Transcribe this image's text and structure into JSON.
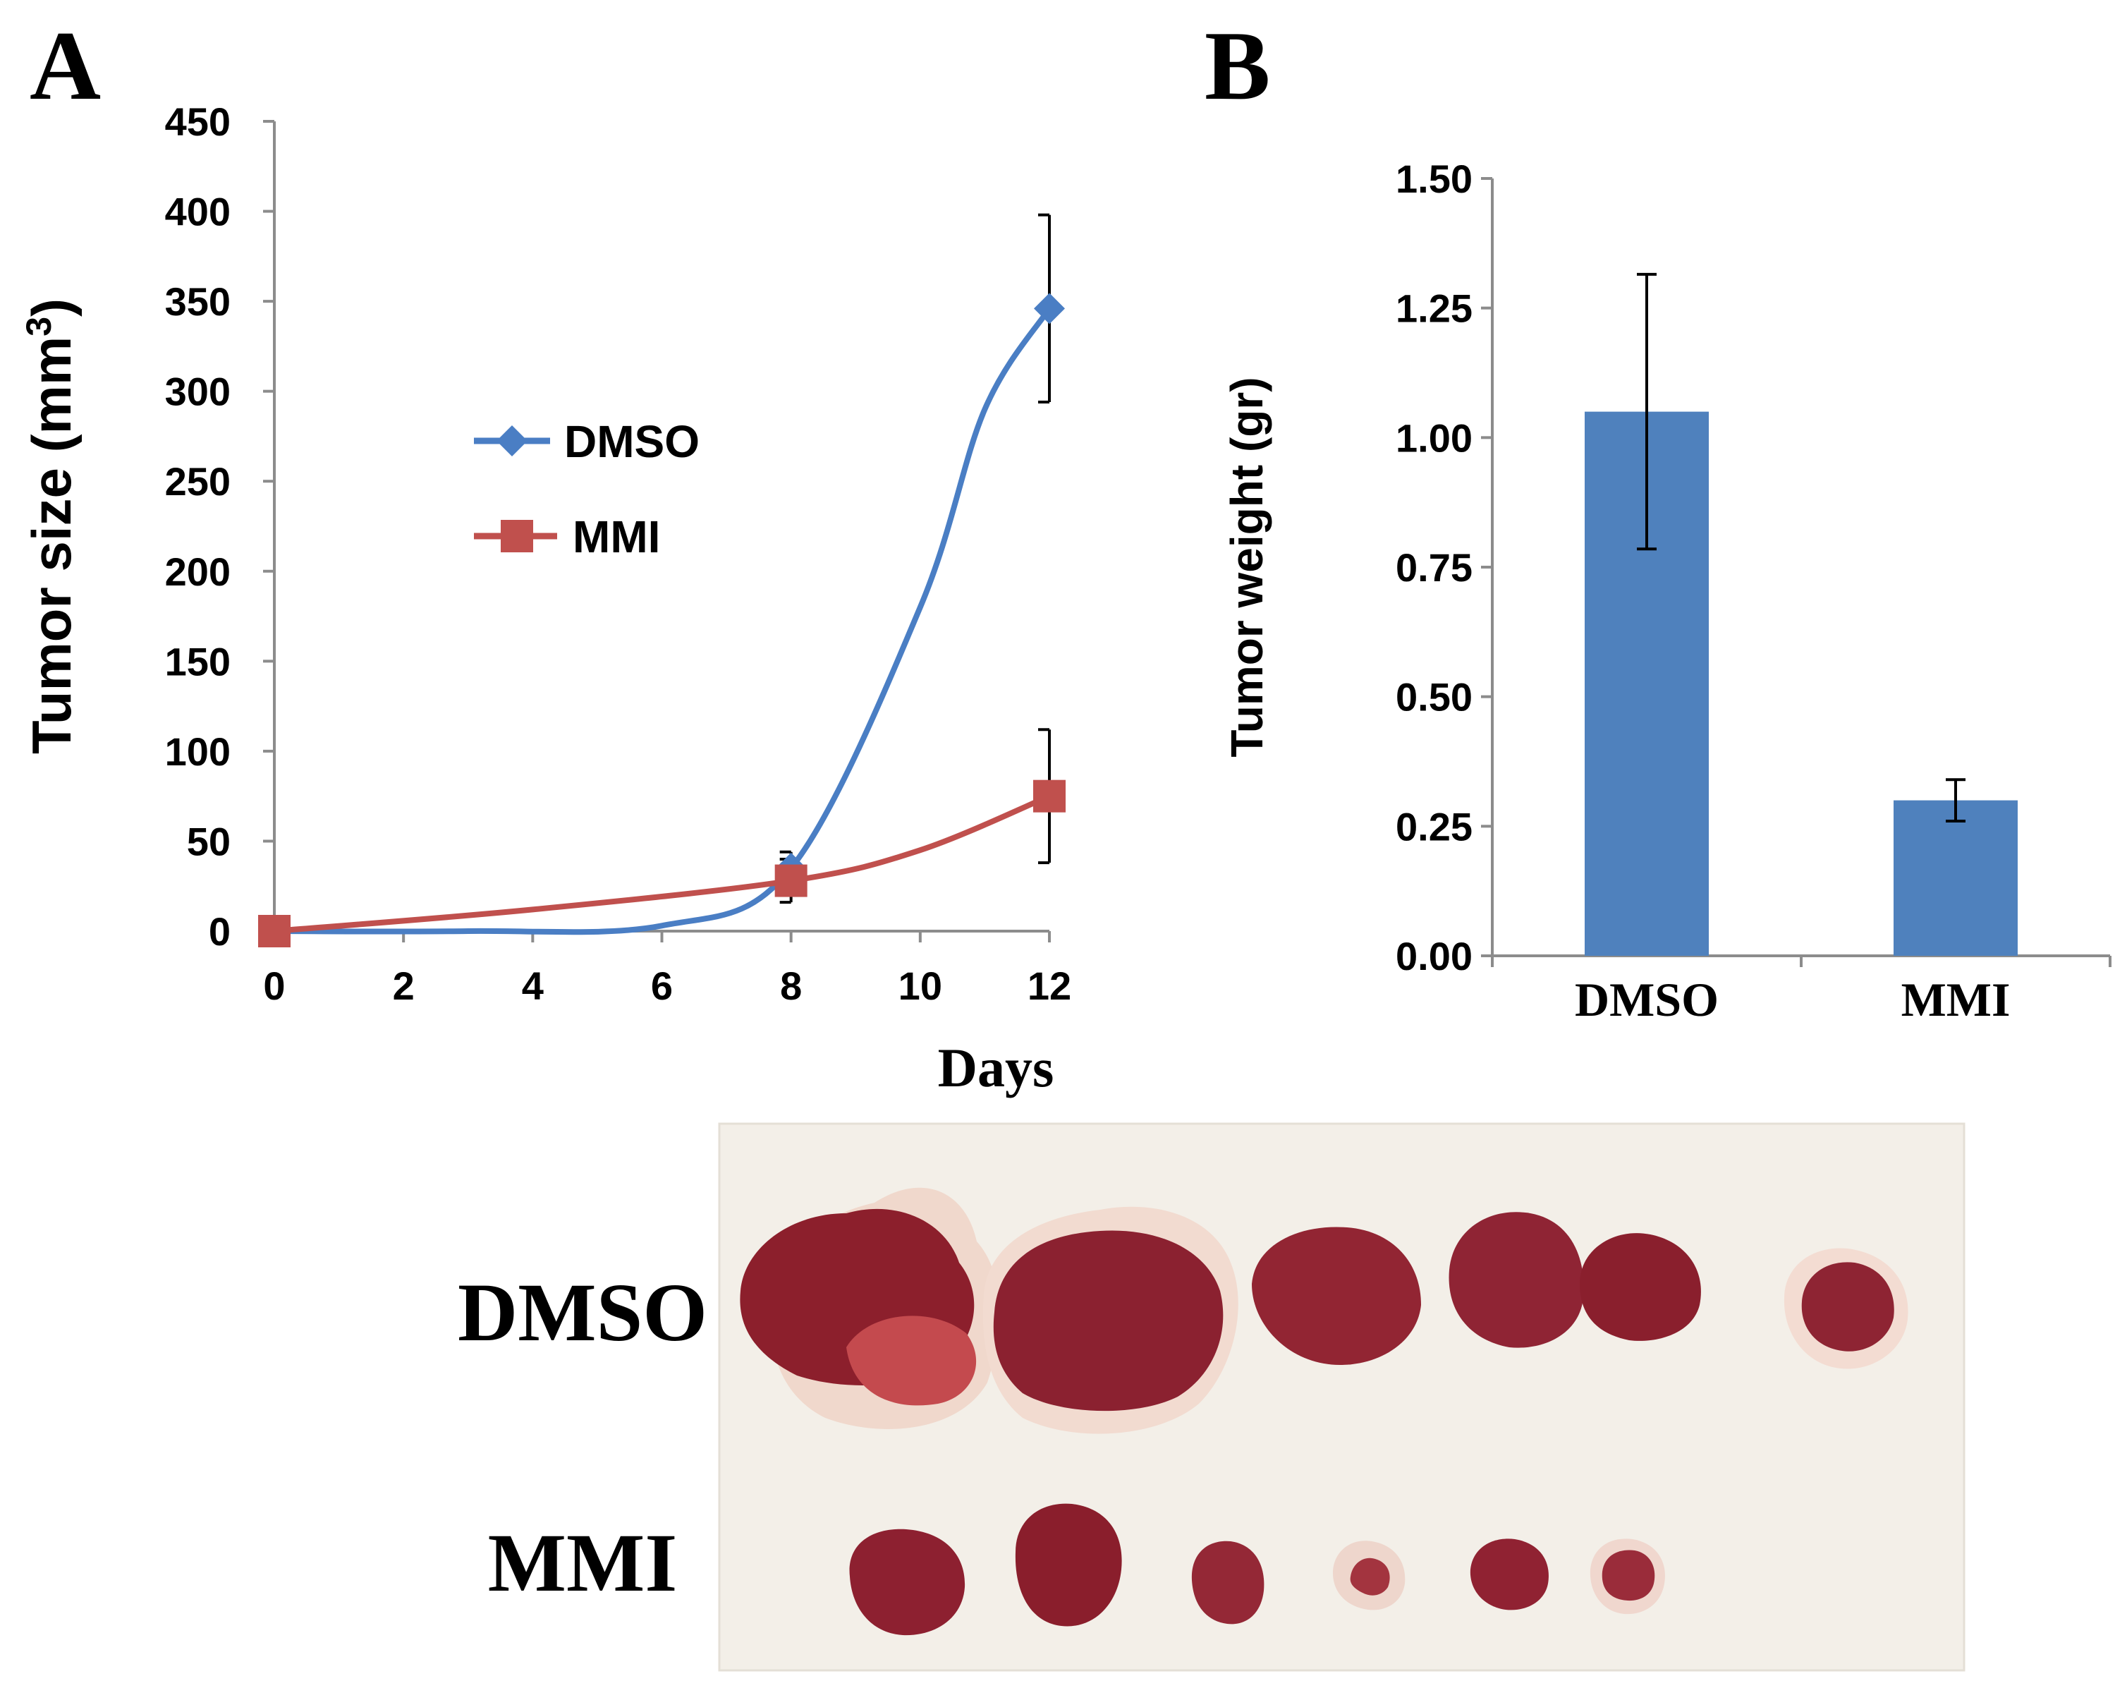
{
  "panels": {
    "a_letter": "A",
    "b_letter": "B"
  },
  "chart_data": [
    {
      "type": "line",
      "panel": "A",
      "xlabel": "Days",
      "ylabel": "Tumor size (mm",
      "ylabel_sup": "3",
      "ylabel_close": ")",
      "xlim": [
        0,
        12
      ],
      "ylim": [
        0,
        450
      ],
      "x_ticks": [
        "0",
        "2",
        "4",
        "6",
        "8",
        "10",
        "12"
      ],
      "y_ticks": [
        "0",
        "50",
        "100",
        "150",
        "200",
        "250",
        "300",
        "350",
        "400",
        "450"
      ],
      "legend": "center-left",
      "series": [
        {
          "name": "DMSO",
          "color": "#4a7ec4",
          "marker": "diamond",
          "x": [
            0,
            8,
            12
          ],
          "y": [
            0,
            35,
            346
          ],
          "error": [
            0,
            9,
            52
          ]
        },
        {
          "name": "MMI",
          "color": "#c0504d",
          "marker": "square",
          "x": [
            0,
            8,
            12
          ],
          "y": [
            0,
            28,
            75
          ],
          "error": [
            0,
            12,
            37
          ]
        }
      ]
    },
    {
      "type": "bar",
      "panel": "B",
      "ylabel": "Tumor weight (gr)",
      "categories": [
        "DMSO",
        "MMI"
      ],
      "values": [
        1.05,
        0.3
      ],
      "error": [
        0.265,
        0.04
      ],
      "color": "#4f81bd",
      "ylim": [
        0,
        1.5
      ],
      "y_ticks": [
        "0.00",
        "0.25",
        "0.50",
        "0.75",
        "1.00",
        "1.25",
        "1.50"
      ]
    }
  ],
  "photo": {
    "dmso_label": "DMSO",
    "mmi_label": "MMI",
    "background_color": "#f3efe8",
    "tissue_color": "#8e2230"
  }
}
